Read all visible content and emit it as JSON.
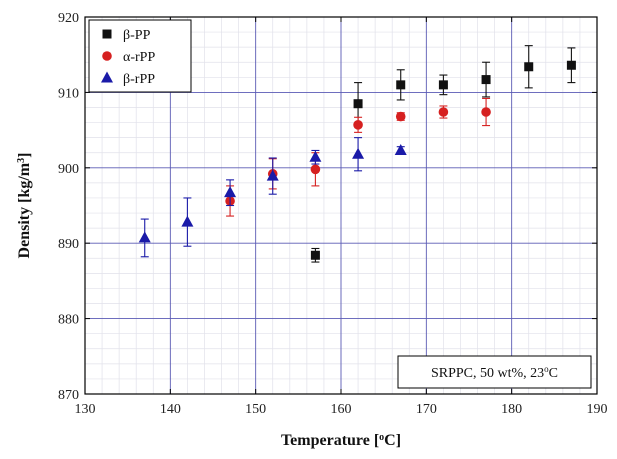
{
  "chart_data": {
    "type": "scatter",
    "xlabel": "Temperature [°C]",
    "xlabel_main": "Temperature [",
    "xlabel_sup": "o",
    "xlabel_tail": "C]",
    "ylabel": "Density [kg/m³]",
    "ylabel_main": "Density [kg/m",
    "ylabel_sup": "3",
    "ylabel_tail": "]",
    "xlim": [
      130,
      190
    ],
    "ylim": [
      870,
      920
    ],
    "xticks": [
      130,
      140,
      150,
      160,
      170,
      180,
      190
    ],
    "yticks": [
      870,
      880,
      890,
      900,
      910,
      920
    ],
    "grid": true,
    "legend_position": "top-left",
    "annotation": "SRPPC, 50 wt%, 23°C",
    "annotation_main": "SRPPC, 50 wt%, 23",
    "annotation_sup": "o",
    "annotation_tail": "C",
    "series": [
      {
        "name": "β-PP",
        "marker": "square",
        "color": "#111111",
        "points": [
          {
            "x": 157,
            "y": 888.4,
            "err": 0.9
          },
          {
            "x": 162,
            "y": 908.5,
            "err": 2.8
          },
          {
            "x": 167,
            "y": 911.0,
            "err": 2.0
          },
          {
            "x": 172,
            "y": 911.0,
            "err": 1.3
          },
          {
            "x": 177,
            "y": 911.7,
            "err": 2.3
          },
          {
            "x": 182,
            "y": 913.4,
            "err": 2.8
          },
          {
            "x": 187,
            "y": 913.6,
            "err": 2.3
          }
        ]
      },
      {
        "name": "α-rPP",
        "marker": "circle",
        "color": "#d62020",
        "points": [
          {
            "x": 147,
            "y": 895.6,
            "err": 2.0
          },
          {
            "x": 152,
            "y": 899.2,
            "err": 2.0
          },
          {
            "x": 157,
            "y": 899.8,
            "err": 2.2
          },
          {
            "x": 162,
            "y": 905.7,
            "err": 1.0
          },
          {
            "x": 167,
            "y": 906.8,
            "err": 0.5
          },
          {
            "x": 172,
            "y": 907.4,
            "err": 0.8
          },
          {
            "x": 177,
            "y": 907.4,
            "err": 1.8
          }
        ]
      },
      {
        "name": "β-rPP",
        "marker": "triangle",
        "color": "#1a1aa8",
        "points": [
          {
            "x": 137,
            "y": 890.7,
            "err": 2.5
          },
          {
            "x": 142,
            "y": 892.8,
            "err": 3.2
          },
          {
            "x": 147,
            "y": 896.7,
            "err": 1.7
          },
          {
            "x": 152,
            "y": 898.9,
            "err": 2.4
          },
          {
            "x": 157,
            "y": 901.4,
            "err": 0.9
          },
          {
            "x": 162,
            "y": 901.8,
            "err": 2.2
          },
          {
            "x": 167,
            "y": 902.3,
            "err": 0.5
          }
        ]
      }
    ]
  }
}
